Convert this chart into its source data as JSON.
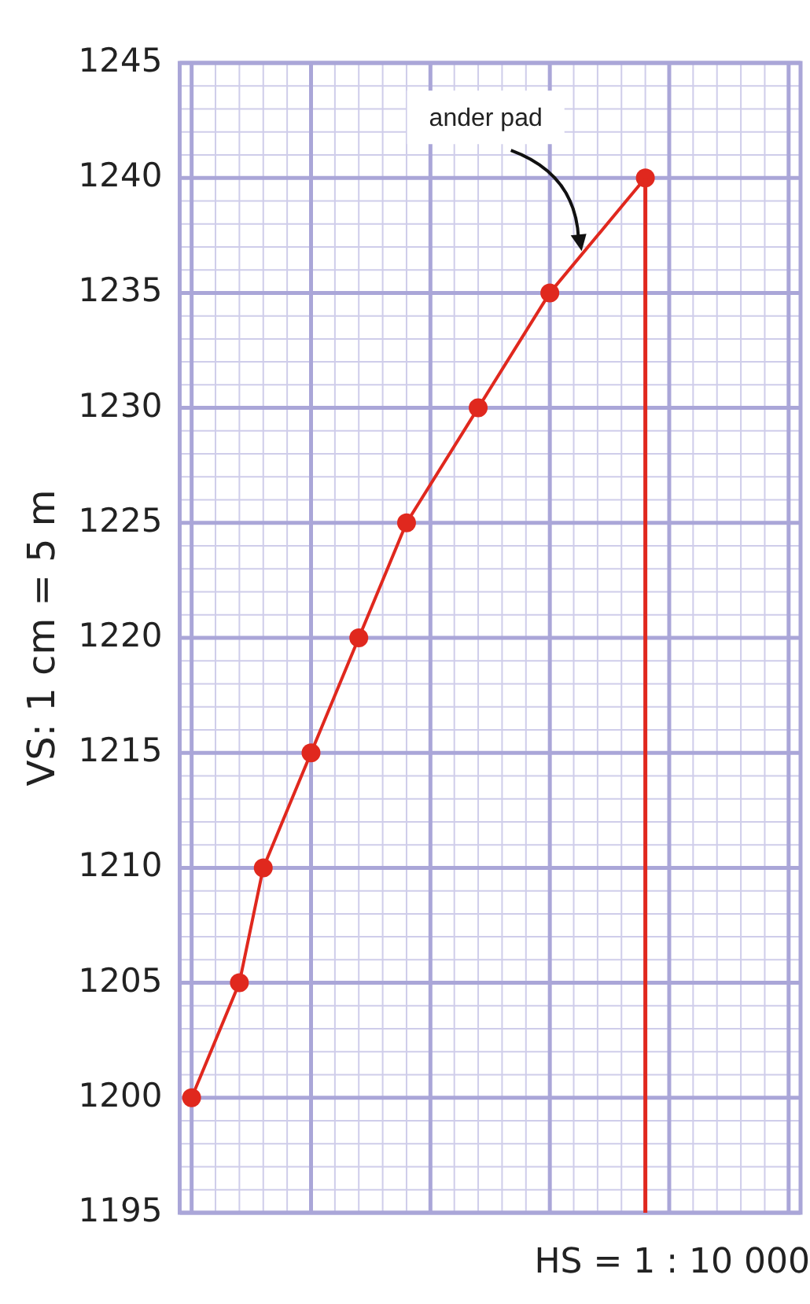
{
  "chart_data": {
    "type": "line",
    "xlabel": "HS = 1 : 10 000",
    "ylabel": "VS: 1 cm = 5 m",
    "categories": [
      null,
      null,
      null,
      null,
      null,
      null,
      null,
      null,
      null,
      null,
      null,
      null,
      null,
      null,
      null,
      null,
      null,
      null,
      null,
      null,
      null,
      null,
      null,
      null,
      null,
      null
    ],
    "ylim": [
      1195,
      1245
    ],
    "yticks": [
      1195,
      1200,
      1205,
      1210,
      1215,
      1220,
      1225,
      1230,
      1235,
      1240,
      1245
    ],
    "tick_labels": "y",
    "grid": true,
    "line_style": "solid",
    "series": [
      {
        "color": "#e0281e",
        "marker": "circle",
        "values": [
          1200,
          null,
          1205,
          1210,
          null,
          1215,
          null,
          1220,
          null,
          1225,
          null,
          null,
          1230,
          null,
          null,
          1235,
          null,
          null,
          null,
          1240,
          null,
          null,
          null,
          null,
          null,
          null
        ],
        "errors": [
          null,
          null,
          null,
          null,
          null,
          null,
          null,
          null,
          null,
          null,
          null,
          null,
          null,
          null,
          null,
          null,
          null,
          null,
          null,
          [
            1195,
            1240
          ],
          null,
          null,
          null,
          null,
          null,
          null
        ]
      }
    ],
    "annotations": [
      "ander pad"
    ]
  }
}
